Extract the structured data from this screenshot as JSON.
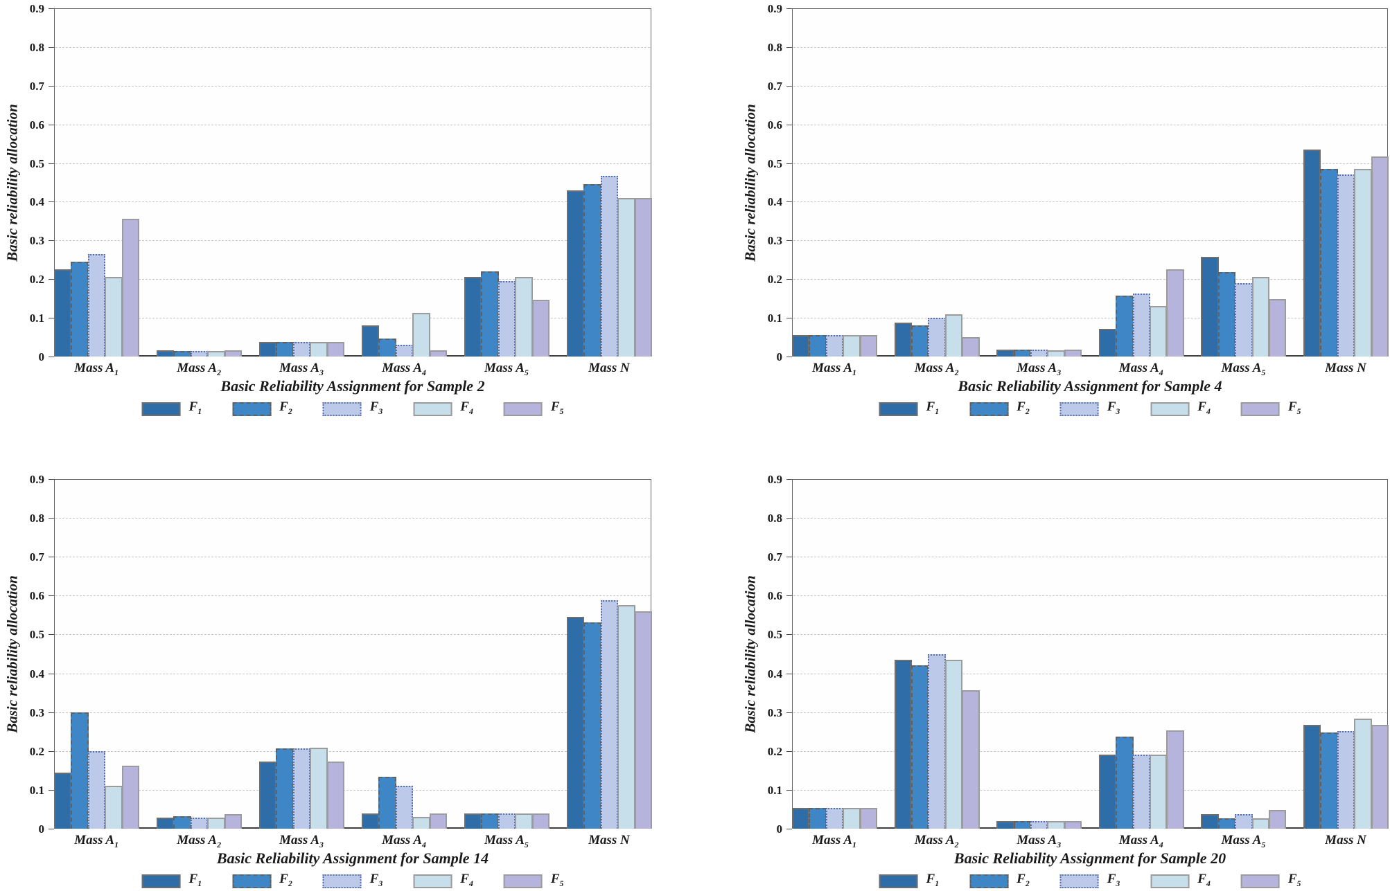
{
  "figure": {
    "ylabel": "Basic reliability allocation",
    "ytick_labels": [
      "0",
      "0.1",
      "0.2",
      "0.3",
      "0.4",
      "0.5",
      "0.6",
      "0.7",
      "0.8",
      "0.9"
    ]
  },
  "style": {
    "series_fill_colors": [
      "#2f6da8",
      "#3f86c6",
      "#bdc9e9",
      "#c7deeb",
      "#b6b4dc"
    ],
    "series_border_colors": [
      "#6e6e6e",
      "#606060",
      "#5a6fa8",
      "#9b9b9b",
      "#9b9b9b"
    ],
    "series_border_styles": [
      "solid",
      "dashed",
      "dotted",
      "solid",
      "solid"
    ],
    "grid_color": "#c6c6c6",
    "axis_color": "#4a4a4a",
    "text_color": "#1a1a1a",
    "plot_background": "#fefefe"
  },
  "chart_data": [
    {
      "type": "bar",
      "title": "Basic Reliability Assignment for Sample 2",
      "ylabel": "Basic reliability allocation",
      "ylim": [
        0,
        0.9
      ],
      "ytick_step": 0.1,
      "grid": true,
      "legend_position": "bottom",
      "categories": [
        "Mass A1",
        "Mass A2",
        "Mass A3",
        "Mass A4",
        "Mass A5",
        "Mass N"
      ],
      "series": [
        {
          "name": "F1",
          "values": [
            0.225,
            0.017,
            0.038,
            0.08,
            0.205,
            0.43
          ]
        },
        {
          "name": "F2",
          "values": [
            0.245,
            0.015,
            0.038,
            0.047,
            0.22,
            0.445
          ]
        },
        {
          "name": "F3",
          "values": [
            0.265,
            0.015,
            0.038,
            0.03,
            0.195,
            0.467
          ]
        },
        {
          "name": "F4",
          "values": [
            0.205,
            0.015,
            0.037,
            0.112,
            0.205,
            0.41
          ]
        },
        {
          "name": "F5",
          "values": [
            0.357,
            0.016,
            0.038,
            0.016,
            0.146,
            0.41
          ]
        }
      ]
    },
    {
      "type": "bar",
      "title": "Basic Reliability Assignment for Sample 4",
      "ylabel": "Basic reliability allocation",
      "ylim": [
        0,
        0.9
      ],
      "ytick_step": 0.1,
      "grid": true,
      "legend_position": "bottom",
      "categories": [
        "Mass A1",
        "Mass A2",
        "Mass A3",
        "Mass A4",
        "Mass A5",
        "Mass N"
      ],
      "series": [
        {
          "name": "F1",
          "values": [
            0.055,
            0.088,
            0.018,
            0.072,
            0.257,
            0.535
          ]
        },
        {
          "name": "F2",
          "values": [
            0.055,
            0.08,
            0.018,
            0.157,
            0.218,
            0.485
          ]
        },
        {
          "name": "F3",
          "values": [
            0.055,
            0.1,
            0.018,
            0.163,
            0.19,
            0.47
          ]
        },
        {
          "name": "F4",
          "values": [
            0.056,
            0.11,
            0.017,
            0.13,
            0.205,
            0.485
          ]
        },
        {
          "name": "F5",
          "values": [
            0.056,
            0.05,
            0.018,
            0.225,
            0.148,
            0.517
          ]
        }
      ]
    },
    {
      "type": "bar",
      "title": "Basic Reliability Assignment for Sample 14",
      "ylabel": "Basic reliability allocation",
      "ylim": [
        0,
        0.9
      ],
      "ytick_step": 0.1,
      "grid": true,
      "legend_position": "bottom",
      "categories": [
        "Mass A1",
        "Mass A2",
        "Mass A3",
        "Mass A4",
        "Mass A5",
        "Mass N"
      ],
      "series": [
        {
          "name": "F1",
          "values": [
            0.145,
            0.028,
            0.173,
            0.04,
            0.04,
            0.545
          ]
        },
        {
          "name": "F2",
          "values": [
            0.3,
            0.032,
            0.207,
            0.133,
            0.04,
            0.532
          ]
        },
        {
          "name": "F3",
          "values": [
            0.2,
            0.028,
            0.207,
            0.11,
            0.04,
            0.588
          ]
        },
        {
          "name": "F4",
          "values": [
            0.11,
            0.028,
            0.208,
            0.03,
            0.04,
            0.575
          ]
        },
        {
          "name": "F5",
          "values": [
            0.163,
            0.038,
            0.173,
            0.04,
            0.04,
            0.56
          ]
        }
      ]
    },
    {
      "type": "bar",
      "title": "Basic Reliability Assignment for Sample 20",
      "ylabel": "Basic reliability allocation",
      "ylim": [
        0,
        0.9
      ],
      "ytick_step": 0.1,
      "grid": true,
      "legend_position": "bottom",
      "categories": [
        "Mass A1",
        "Mass A2",
        "Mass A3",
        "Mass A4",
        "Mass A5",
        "Mass N"
      ],
      "series": [
        {
          "name": "F1",
          "values": [
            0.053,
            0.435,
            0.02,
            0.19,
            0.037,
            0.267
          ]
        },
        {
          "name": "F2",
          "values": [
            0.053,
            0.42,
            0.02,
            0.237,
            0.027,
            0.248
          ]
        },
        {
          "name": "F3",
          "values": [
            0.053,
            0.45,
            0.02,
            0.19,
            0.037,
            0.252
          ]
        },
        {
          "name": "F4",
          "values": [
            0.053,
            0.435,
            0.02,
            0.19,
            0.027,
            0.283
          ]
        },
        {
          "name": "F5",
          "values": [
            0.053,
            0.357,
            0.02,
            0.253,
            0.048,
            0.268
          ]
        }
      ]
    }
  ]
}
